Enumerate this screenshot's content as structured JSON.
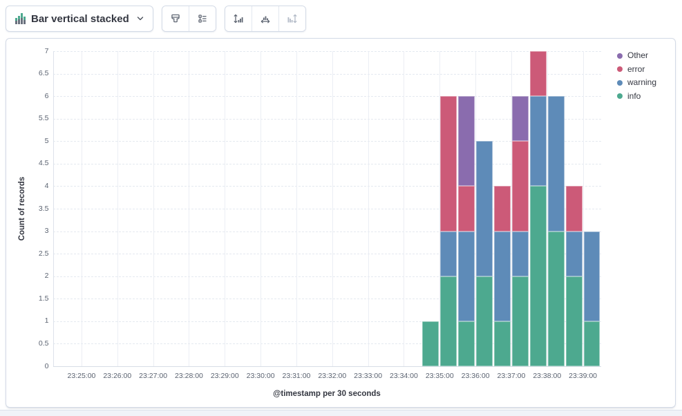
{
  "toolbar": {
    "chart_type": {
      "label": "Bar vertical stacked",
      "icon": "bar-vertical-stacked-icon",
      "dropdown_icon": "chevron-down-icon"
    },
    "icon_buttons": [
      {
        "name": "visual-options",
        "icon": "brush-icon",
        "disabled": false
      },
      {
        "name": "legend-settings",
        "icon": "legend-list-icon",
        "disabled": false
      },
      {
        "name": "left-axis",
        "icon": "axis-left-icon",
        "disabled": false
      },
      {
        "name": "bottom-axis",
        "icon": "axis-bottom-icon",
        "disabled": false
      },
      {
        "name": "right-axis",
        "icon": "axis-right-icon",
        "disabled": true
      }
    ]
  },
  "chart_data": {
    "type": "bar",
    "stacked": true,
    "orientation": "vertical",
    "ylabel": "Count of records",
    "xlabel": "@timestamp per 30 seconds",
    "ylim": [
      0,
      7
    ],
    "y_tick_step": 0.5,
    "bucket_seconds": 30,
    "x_axis_range": [
      "23:24:12",
      "23:39:30"
    ],
    "x_ticks": [
      "23:25:00",
      "23:26:00",
      "23:27:00",
      "23:28:00",
      "23:29:00",
      "23:30:00",
      "23:31:00",
      "23:32:00",
      "23:33:00",
      "23:34:00",
      "23:35:00",
      "23:36:00",
      "23:37:00",
      "23:38:00",
      "23:39:00"
    ],
    "categories": [
      "23:34:30",
      "23:35:00",
      "23:35:30",
      "23:36:00",
      "23:36:30",
      "23:37:00",
      "23:37:30",
      "23:38:00",
      "23:38:30",
      "23:39:00"
    ],
    "series": [
      {
        "name": "info",
        "color": "#4DA98F",
        "values": [
          1,
          2,
          1,
          2,
          1,
          2,
          4,
          3,
          2,
          1
        ]
      },
      {
        "name": "warning",
        "color": "#5E8BB8",
        "values": [
          0,
          1,
          2,
          3,
          2,
          1,
          2,
          3,
          1,
          2
        ]
      },
      {
        "name": "error",
        "color": "#CC5A78",
        "values": [
          0,
          3,
          1,
          0,
          1,
          2,
          1,
          0,
          1,
          0
        ]
      },
      {
        "name": "Other",
        "color": "#8A6CAE",
        "values": [
          0,
          0,
          2,
          0,
          0,
          1,
          0,
          0,
          0,
          0
        ]
      }
    ],
    "stack_order": "bottom_to_top",
    "grid": {
      "horizontal": "dashed",
      "vertical": "solid"
    },
    "legend": {
      "position": "top-right",
      "order_top_to_bottom": [
        "Other",
        "error",
        "warning",
        "info"
      ]
    }
  }
}
